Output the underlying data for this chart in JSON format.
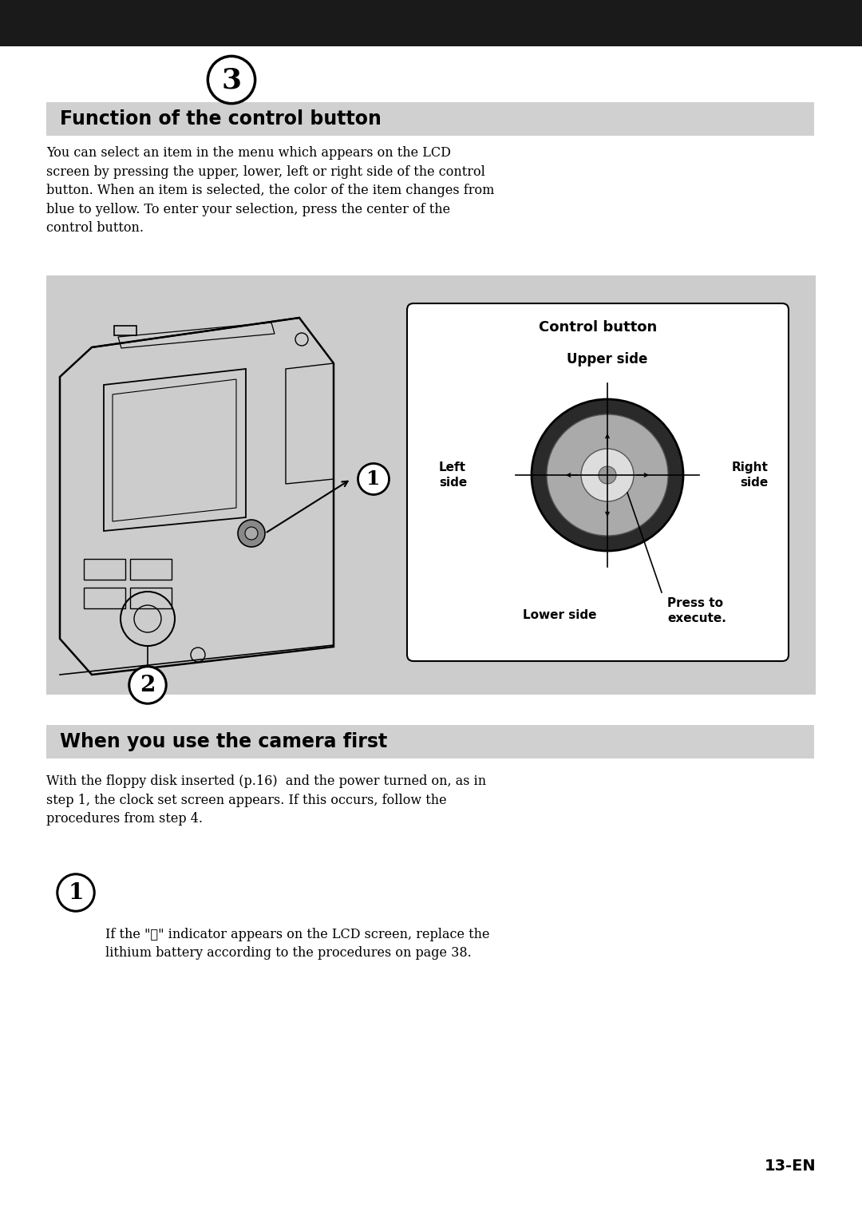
{
  "page_bg": "#ffffff",
  "header_bg": "#1a1a1a",
  "section_bg": "#d0d0d0",
  "diagram_bg": "#cccccc",
  "section1_title": "Function of the control button",
  "section1_title_fontsize": 17,
  "section2_title": "When you use the camera first",
  "section2_title_fontsize": 17,
  "body_text1": "You can select an item in the menu which appears on the LCD\nscreen by pressing the upper, lower, left or right side of the control\nbutton. When an item is selected, the color of the item changes from\nblue to yellow. To enter your selection, press the center of the\ncontrol button.",
  "body_text1_fontsize": 11.5,
  "body_text2": "With the floppy disk inserted (p.16)  and the power turned on, as in\nstep 1, the clock set screen appears. If this occurs, follow the\nprocedures from step 4.",
  "body_text2_fontsize": 11.5,
  "body_text3": "If the \"⚓\" indicator appears on the LCD screen, replace the\nlithium battery according to the procedures on page 38.",
  "body_text3_fontsize": 11.5,
  "page_number": "13-EN",
  "page_number_fontsize": 14,
  "control_box_label": "Control button",
  "upper_side_label": "Upper side",
  "left_side_label": "Left\nside",
  "right_side_label": "Right\nside",
  "lower_side_label": "Lower side",
  "press_label": "Press to\nexecute."
}
